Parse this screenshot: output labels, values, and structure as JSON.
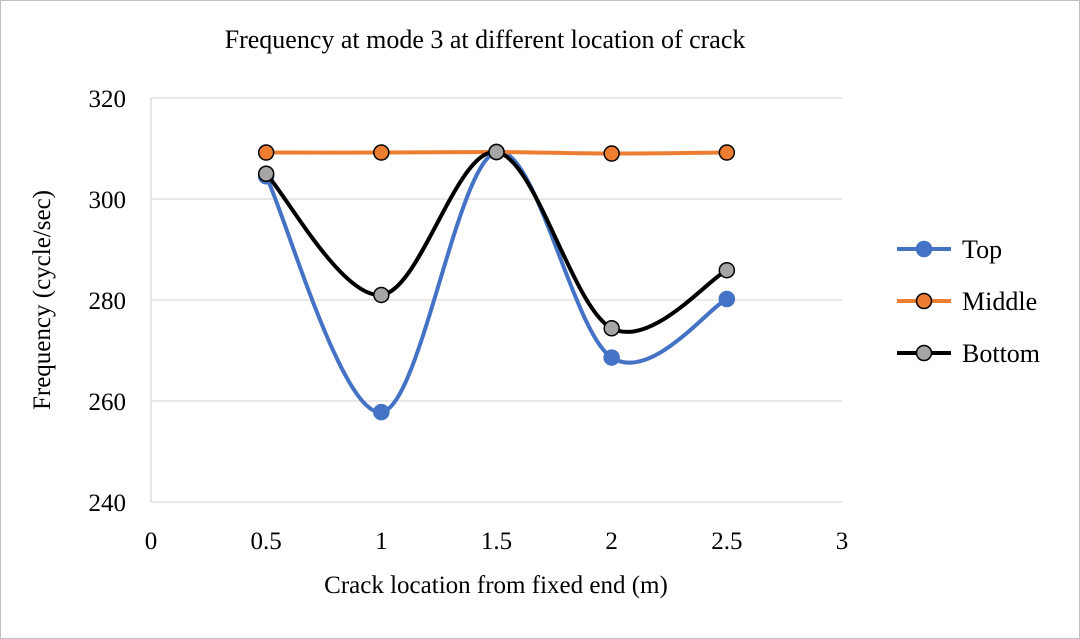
{
  "chart_data": {
    "type": "line",
    "title": "Frequency at mode 3 at different location of  crack",
    "xlabel": "Crack location from fixed end (m)",
    "ylabel": "Frequency (cycle/sec)",
    "xlim": [
      0,
      3
    ],
    "ylim": [
      240,
      320
    ],
    "xticks": [
      "0",
      "0.5",
      "1",
      "1.5",
      "2",
      "2.5",
      "3"
    ],
    "yticks": [
      "240",
      "260",
      "280",
      "300",
      "320"
    ],
    "grid": "horizontal",
    "legend_position": "right",
    "x": [
      0.5,
      1,
      1.5,
      2,
      2.5
    ],
    "series": [
      {
        "name": "Top",
        "color": "#4472c4",
        "values": [
          304.5,
          257.8,
          309.3,
          268.6,
          280.2
        ]
      },
      {
        "name": "Middle",
        "color": "#ed7d31",
        "values": [
          309.2,
          309.2,
          309.3,
          309.0,
          309.2
        ]
      },
      {
        "name": "Bottom",
        "color": "#000000",
        "marker_fill": "#a5a5a5",
        "values": [
          305.0,
          281.0,
          309.3,
          274.4,
          285.9
        ]
      }
    ]
  }
}
